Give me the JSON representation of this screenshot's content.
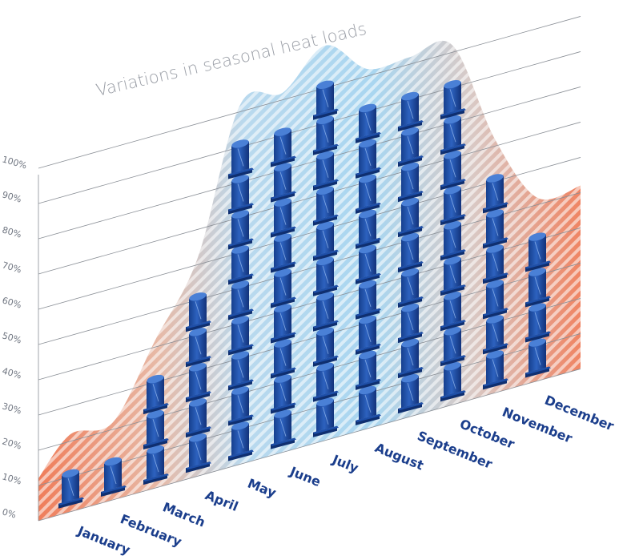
{
  "chart_data": {
    "type": "bar",
    "title": "Variations in seasonal heat loads",
    "xlabel": "",
    "ylabel": "",
    "categories": [
      "January",
      "February",
      "March",
      "April",
      "May",
      "June",
      "July",
      "August",
      "September",
      "October",
      "November",
      "December"
    ],
    "values": [
      10,
      10,
      30,
      50,
      90,
      90,
      100,
      90,
      90,
      90,
      60,
      40
    ],
    "y_ticks": [
      "0%",
      "10%",
      "20%",
      "30%",
      "40%",
      "50%",
      "60%",
      "70%",
      "80%",
      "90%",
      "100%"
    ],
    "ylim": [
      0,
      100
    ],
    "unit": "%",
    "grid": true,
    "colors": {
      "icon_main": "#1e4fa8",
      "icon_dark": "#0f2f70",
      "icon_light": "#4a80d6",
      "curve_cool": "#bfe1f3",
      "curve_warm": "#ef8a6a",
      "axis_text": "#6f7580",
      "month_text": "#1b3e8c",
      "title_text": "#9a9ea6",
      "grid_line": "#8a8f96"
    }
  }
}
